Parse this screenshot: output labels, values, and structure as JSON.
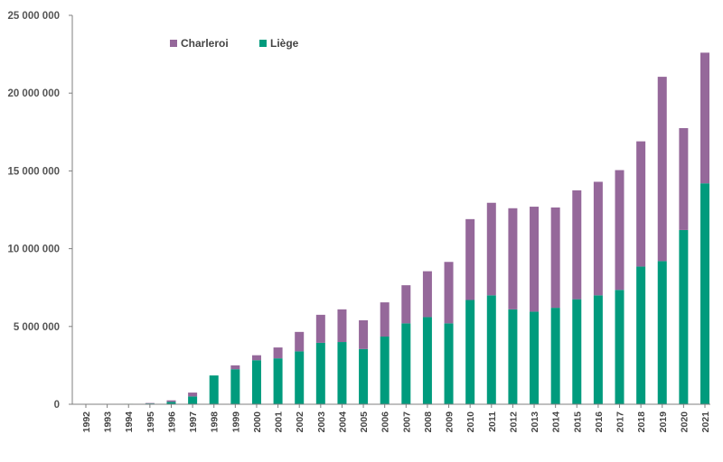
{
  "chart_data": {
    "type": "bar",
    "stacked": true,
    "title": "",
    "xlabel": "",
    "ylabel": "",
    "ylim": [
      0,
      25000000
    ],
    "yticks": [
      0,
      5000000,
      10000000,
      15000000,
      20000000,
      25000000
    ],
    "ytick_labels": [
      "0",
      "5 000 000",
      "10 000 000",
      "15 000 000",
      "20 000 000",
      "25 000 000"
    ],
    "grid": false,
    "legend_position": "top-left",
    "categories": [
      "1992",
      "1993",
      "1994",
      "1995",
      "1996",
      "1997",
      "1998",
      "1999",
      "2000",
      "2001",
      "2002",
      "2003",
      "2004",
      "2005",
      "2006",
      "2007",
      "2008",
      "2009",
      "2010",
      "2011",
      "2012",
      "2013",
      "2014",
      "2015",
      "2016",
      "2017",
      "2018",
      "2019",
      "2020",
      "2021"
    ],
    "series": [
      {
        "name": "Liège",
        "color": "#009b7d",
        "values": [
          20000,
          20000,
          30000,
          50000,
          150000,
          500000,
          1850000,
          2250000,
          2830000,
          2950000,
          3400000,
          3950000,
          4000000,
          3550000,
          4350000,
          5200000,
          5600000,
          5200000,
          6700000,
          7000000,
          6100000,
          5950000,
          6200000,
          6750000,
          7000000,
          7350000,
          8850000,
          9200000,
          11200000,
          14200000
        ]
      },
      {
        "name": "Charleroi",
        "color": "#95689a",
        "values": [
          0,
          0,
          0,
          30000,
          100000,
          250000,
          0,
          250000,
          320000,
          700000,
          1250000,
          1800000,
          2100000,
          1850000,
          2200000,
          2450000,
          2950000,
          3950000,
          5200000,
          5950000,
          6500000,
          6750000,
          6450000,
          7000000,
          7300000,
          7700000,
          8050000,
          11850000,
          6550000,
          8400000
        ]
      }
    ]
  }
}
